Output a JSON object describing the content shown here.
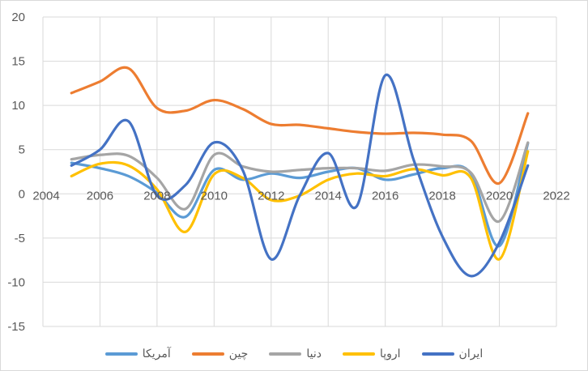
{
  "chart_data": {
    "type": "line",
    "title": "",
    "xlabel": "",
    "ylabel": "",
    "xlim": [
      2004,
      2022
    ],
    "ylim": [
      -15,
      20
    ],
    "xticks": [
      2004,
      2006,
      2008,
      2010,
      2012,
      2014,
      2016,
      2018,
      2020,
      2022
    ],
    "yticks": [
      -15,
      -10,
      -5,
      0,
      5,
      10,
      15,
      20
    ],
    "grid": true,
    "smooth": true,
    "legend_position": "bottom",
    "x": [
      2005,
      2006,
      2007,
      2008,
      2009,
      2010,
      2011,
      2012,
      2013,
      2014,
      2015,
      2016,
      2017,
      2018,
      2019,
      2020,
      2021
    ],
    "series": [
      {
        "name": "آمریکا",
        "color": "#5B9BD5",
        "values": [
          3.5,
          2.9,
          2.0,
          0.1,
          -2.6,
          2.7,
          1.6,
          2.3,
          1.8,
          2.5,
          2.9,
          1.6,
          2.2,
          2.9,
          2.3,
          -5.9,
          5.7
        ]
      },
      {
        "name": "چین",
        "color": "#ED7D31",
        "values": [
          11.4,
          12.7,
          14.2,
          9.7,
          9.4,
          10.6,
          9.6,
          7.9,
          7.8,
          7.4,
          7.0,
          6.8,
          6.9,
          6.7,
          6.0,
          1.2,
          9.1
        ]
      },
      {
        "name": "دنیا",
        "color": "#A5A5A5",
        "values": [
          3.9,
          4.4,
          4.3,
          1.8,
          -1.7,
          4.4,
          3.1,
          2.5,
          2.7,
          2.9,
          2.9,
          2.6,
          3.3,
          3.1,
          2.4,
          -3.1,
          5.8
        ]
      },
      {
        "name": "اروپا",
        "color": "#FFC000",
        "values": [
          2.0,
          3.4,
          3.2,
          0.5,
          -4.3,
          2.2,
          1.8,
          -0.7,
          -0.2,
          1.6,
          2.3,
          2.0,
          2.8,
          2.1,
          1.8,
          -7.4,
          4.8
        ]
      },
      {
        "name": "ایران",
        "color": "#4472C4",
        "values": [
          3.2,
          5.0,
          8.2,
          -0.2,
          1.0,
          5.8,
          2.7,
          -7.4,
          -0.2,
          4.6,
          -1.4,
          13.4,
          3.8,
          -4.8,
          -9.3,
          -5.5,
          3.2
        ]
      }
    ]
  }
}
